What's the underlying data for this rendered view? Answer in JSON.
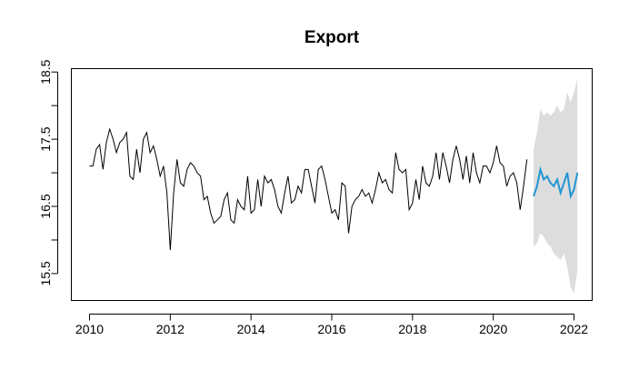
{
  "chart_data": {
    "type": "line",
    "title": "Export",
    "xlabel": "",
    "ylabel": "",
    "xlim": [
      2009.55,
      2022.45
    ],
    "ylim": [
      15.1,
      18.55
    ],
    "x_ticks": [
      2010,
      2012,
      2014,
      2016,
      2018,
      2020,
      2022
    ],
    "x_tick_labels": [
      "2010",
      "2012",
      "2014",
      "2016",
      "2018",
      "2020",
      "2022"
    ],
    "y_ticks": [
      15.5,
      16.0,
      16.5,
      17.0,
      17.5,
      18.0,
      18.5
    ],
    "y_tick_labels": [
      "15.5",
      "",
      "16.5",
      "",
      "17.5",
      "",
      "18.5"
    ],
    "grid": false,
    "colors": {
      "observed": "#000000",
      "forecast": "#2196d3",
      "interval": "#dddddd"
    },
    "observed": {
      "start": 2010,
      "frequency": 12,
      "values": [
        17.1,
        17.1,
        17.35,
        17.42,
        17.05,
        17.45,
        17.65,
        17.5,
        17.3,
        17.45,
        17.5,
        17.6,
        16.95,
        16.9,
        17.35,
        17.0,
        17.5,
        17.6,
        17.3,
        17.4,
        17.2,
        16.95,
        17.1,
        16.7,
        15.85,
        16.7,
        17.2,
        16.85,
        16.8,
        17.05,
        17.15,
        17.1,
        17.0,
        16.95,
        16.6,
        16.65,
        16.4,
        16.25,
        16.3,
        16.35,
        16.6,
        16.7,
        16.3,
        16.25,
        16.6,
        16.5,
        16.45,
        16.95,
        16.4,
        16.45,
        16.9,
        16.5,
        16.95,
        16.85,
        16.9,
        16.75,
        16.5,
        16.4,
        16.7,
        16.95,
        16.55,
        16.6,
        16.8,
        16.7,
        17.05,
        17.05,
        16.8,
        16.55,
        17.05,
        17.1,
        16.9,
        16.65,
        16.4,
        16.45,
        16.3,
        16.85,
        16.8,
        16.1,
        16.5,
        16.6,
        16.65,
        16.75,
        16.65,
        16.7,
        16.55,
        16.75,
        17.0,
        16.85,
        16.9,
        16.75,
        16.7,
        17.3,
        17.05,
        17.0,
        17.05,
        16.45,
        16.55,
        16.9,
        16.6,
        17.1,
        16.85,
        16.8,
        16.95,
        17.3,
        16.9,
        17.3,
        17.1,
        16.85,
        17.2,
        17.4,
        17.2,
        16.9,
        17.25,
        16.85,
        17.3,
        17.0,
        16.85,
        17.1,
        17.1,
        17.0,
        17.15,
        17.4,
        17.15,
        17.1,
        16.8,
        16.95,
        17.0,
        16.85,
        16.45,
        16.8,
        17.2
      ]
    },
    "forecast": {
      "start": 2021,
      "frequency": 12,
      "values": [
        16.65,
        16.8,
        17.05,
        16.9,
        16.95,
        16.85,
        16.8,
        16.9,
        16.7,
        16.85,
        17.0,
        16.65,
        16.75,
        17.0
      ],
      "lower": [
        15.9,
        15.95,
        16.1,
        16.05,
        15.95,
        15.9,
        15.8,
        15.75,
        15.7,
        15.8,
        15.6,
        15.3,
        15.2,
        15.55
      ],
      "upper": [
        17.35,
        17.6,
        17.95,
        17.85,
        17.9,
        17.85,
        17.9,
        18.0,
        17.9,
        17.95,
        18.2,
        18.05,
        18.2,
        18.4
      ]
    }
  }
}
